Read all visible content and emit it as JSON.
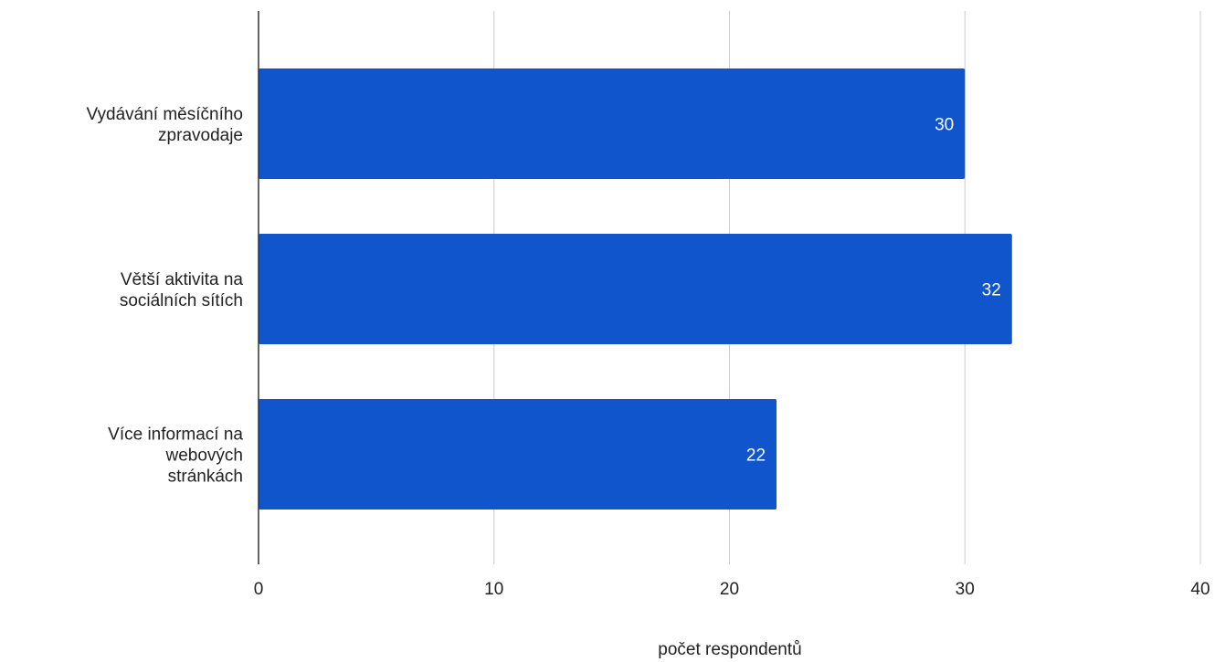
{
  "chart_data": {
    "type": "bar",
    "orientation": "horizontal",
    "categories": [
      "Vydávání měsíčního zpravodaje",
      "Větší aktivita na sociálních sítích",
      "Více informací na webových stránkách"
    ],
    "values": [
      30,
      32,
      22
    ],
    "xlabel": "počet respondentů",
    "ylabel": "",
    "xlim": [
      0,
      40
    ],
    "xticks": [
      0,
      10,
      20,
      30,
      40
    ],
    "grid": "vertical",
    "legend": "none",
    "bar_color": "#1155cc",
    "data_label_color": "#ffffff",
    "gridline_color": "#cccccc",
    "axis_color": "#333333",
    "text_color": "#222222"
  }
}
